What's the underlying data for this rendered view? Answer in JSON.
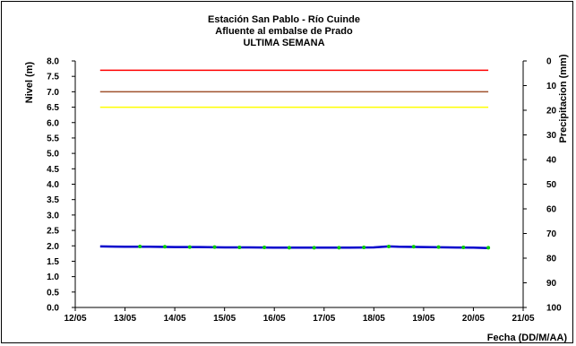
{
  "chart_data": {
    "type": "line",
    "title": "Estación San Pablo - Río Cuinde",
    "subtitle": "Afluente al embalse de Prado",
    "subtitle2": "ULTIMA SEMANA",
    "ylabel": "Nivel (m)",
    "y2label": "Precipitacion (mm)",
    "xlabel": "Fecha (DD/M/AA)",
    "ylim": [
      0,
      8
    ],
    "y2lim": [
      0,
      100
    ],
    "y2_inverted": true,
    "grid": false,
    "x_ticks": [
      "12/05",
      "13/05",
      "14/05",
      "15/05",
      "16/05",
      "17/05",
      "18/05",
      "19/05",
      "20/05",
      "21/05"
    ],
    "y_ticks": [
      "0.0",
      "0.5",
      "1.0",
      "1.5",
      "2.0",
      "2.5",
      "3.0",
      "3.5",
      "4.0",
      "4.5",
      "5.0",
      "5.5",
      "6.0",
      "6.5",
      "7.0",
      "7.5",
      "8.0"
    ],
    "y2_ticks": [
      "0",
      "10",
      "20",
      "30",
      "40",
      "50",
      "60",
      "70",
      "80",
      "90",
      "100"
    ],
    "thresholds": [
      {
        "value": 7.7,
        "color": "#ff0000"
      },
      {
        "value": 7.0,
        "color": "#a0522d"
      },
      {
        "value": 6.5,
        "color": "#ffff00"
      }
    ],
    "series": [
      {
        "color": "#0000cc",
        "x": [
          12.5,
          13.0,
          13.5,
          14.0,
          14.5,
          15.0,
          15.5,
          16.0,
          16.5,
          17.0,
          17.5,
          18.0,
          18.3,
          18.5,
          19.0,
          19.5,
          20.0,
          20.3
        ],
        "y": [
          1.98,
          1.97,
          1.97,
          1.96,
          1.96,
          1.95,
          1.95,
          1.94,
          1.94,
          1.94,
          1.94,
          1.95,
          1.98,
          1.97,
          1.96,
          1.95,
          1.94,
          1.93
        ]
      }
    ],
    "markers": {
      "color": "#00cc00",
      "x": [
        13.3,
        13.8,
        14.3,
        14.8,
        15.3,
        15.8,
        16.3,
        16.8,
        17.3,
        17.8,
        18.3,
        18.8,
        19.3,
        19.8,
        20.3
      ],
      "y": [
        1.98,
        1.97,
        1.96,
        1.96,
        1.95,
        1.95,
        1.94,
        1.94,
        1.94,
        1.95,
        1.98,
        1.97,
        1.96,
        1.95,
        1.94
      ]
    }
  }
}
